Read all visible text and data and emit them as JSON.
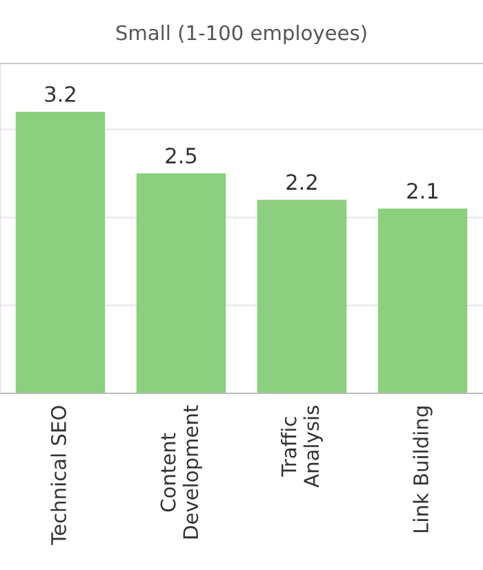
{
  "chart_data": {
    "type": "bar",
    "title": "Small (1-100 employees)",
    "categories": [
      "Technical SEO",
      "Content\nDevelopment",
      "Traffic\nAnalysis",
      "Link Building"
    ],
    "values": [
      3.2,
      2.5,
      2.2,
      2.1
    ],
    "color": "#8ccf7e",
    "ylim": [
      0,
      3.75
    ],
    "yticks": [
      {
        "value": 1,
        "label": null
      },
      {
        "value": 2,
        "label": null
      },
      {
        "value": 3,
        "label": null
      }
    ],
    "grid": "y",
    "data_labels": true
  }
}
